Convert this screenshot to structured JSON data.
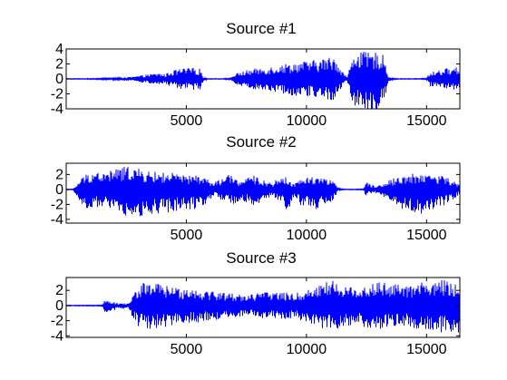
{
  "chart_data": [
    {
      "type": "line",
      "title": "Source #1",
      "xlim": [
        0,
        16384
      ],
      "ylim": [
        -4,
        4
      ],
      "xticks": [
        5000,
        10000,
        15000
      ],
      "xtick_labels": [
        "5000",
        "10000",
        "15000"
      ],
      "yticks": [
        4,
        2,
        0,
        -2,
        -4
      ],
      "ytick_labels": [
        "4",
        "2",
        "0",
        "-2",
        "-4"
      ],
      "series": [
        {
          "color": "#0000ff",
          "envelope": {
            "x": [
              0,
              800,
              1500,
              2200,
              2800,
              3200,
              3600,
              3900,
              4100,
              4300,
              4800,
              5200,
              5600,
              5700,
              5900,
              6500,
              6800,
              7000,
              7200,
              7700,
              8300,
              8900,
              9400,
              10000,
              10500,
              11000,
              11200,
              11300,
              11500,
              11700,
              11800,
              11900,
              12050,
              12200,
              12400,
              12700,
              13000,
              13150,
              13300,
              13400,
              13600,
              13800,
              14200,
              14700,
              15000,
              15150,
              15200,
              15600,
              16000,
              16384
            ],
            "upper": [
              0.05,
              0.05,
              0.1,
              0.15,
              0.3,
              0.5,
              0.7,
              0.8,
              0.6,
              1.0,
              1.4,
              1.5,
              1.4,
              0.3,
              0.05,
              0.05,
              0.1,
              0.6,
              0.9,
              1.3,
              1.6,
              1.9,
              2.2,
              2.4,
              2.6,
              3.0,
              3.1,
              2.4,
              1.0,
              0.3,
              1.5,
              2.8,
              3.9,
              3.9,
              3.6,
              3.5,
              3.6,
              3.4,
              2.2,
              0.4,
              0.1,
              0.05,
              0.05,
              0.05,
              0.1,
              1.0,
              0.9,
              1.3,
              1.5,
              1.6
            ],
            "lower": [
              -0.05,
              -0.05,
              -0.1,
              -0.15,
              -0.3,
              -0.5,
              -0.7,
              -0.8,
              -0.6,
              -1.0,
              -1.4,
              -1.5,
              -1.4,
              -0.3,
              -0.05,
              -0.05,
              -0.1,
              -0.6,
              -0.9,
              -1.3,
              -1.6,
              -1.9,
              -2.2,
              -2.4,
              -2.6,
              -2.9,
              -2.8,
              -2.2,
              -1.0,
              -0.3,
              -1.8,
              -3.0,
              -3.9,
              -4.3,
              -4.0,
              -4.3,
              -4.2,
              -3.8,
              -2.4,
              -0.4,
              -0.1,
              -0.05,
              -0.05,
              -0.05,
              -0.1,
              -1.0,
              -1.0,
              -1.2,
              -1.4,
              -1.5
            ]
          }
        }
      ]
    },
    {
      "type": "line",
      "title": "Source #2",
      "xlim": [
        0,
        16384
      ],
      "ylim": [
        -4.5,
        3.5
      ],
      "xticks": [
        5000,
        10000,
        15000
      ],
      "xtick_labels": [
        "5000",
        "10000",
        "15000"
      ],
      "yticks": [
        2,
        0,
        -2,
        -4
      ],
      "ytick_labels": [
        "2",
        "0",
        "-2",
        "-4"
      ],
      "series": [
        {
          "color": "#0000ff",
          "envelope": {
            "x": [
              0,
              300,
              500,
              700,
              1000,
              1300,
              1600,
              2000,
              2400,
              2700,
              2900,
              3100,
              3500,
              4000,
              4500,
              5000,
              5500,
              5900,
              6100,
              6400,
              6800,
              7200,
              7600,
              7900,
              8200,
              8600,
              9000,
              9300,
              9500,
              9700,
              10000,
              10400,
              10800,
              11100,
              11300,
              11500,
              12000,
              12400,
              12450,
              12600,
              13000,
              13400,
              13800,
              14200,
              14600,
              15000,
              15400,
              15700,
              16000,
              16384
            ],
            "upper": [
              0.05,
              0.05,
              1.0,
              1.8,
              2.4,
              2.5,
              2.2,
              2.8,
              3.0,
              3.3,
              3.0,
              2.6,
              2.4,
              2.3,
              2.2,
              1.8,
              2.0,
              1.4,
              0.8,
              1.4,
              2.0,
              1.2,
              1.6,
              1.9,
              1.2,
              1.0,
              1.8,
              1.4,
              0.6,
              1.6,
              1.6,
              1.9,
              1.6,
              1.2,
              0.3,
              0.05,
              0.05,
              0.1,
              1.4,
              0.8,
              0.5,
              1.2,
              1.7,
              2.0,
              2.2,
              2.3,
              2.0,
              1.8,
              1.4,
              0.6
            ],
            "lower": [
              -0.05,
              -0.05,
              -1.4,
              -2.4,
              -2.6,
              -2.4,
              -2.2,
              -2.8,
              -3.4,
              -4.4,
              -4.2,
              -3.6,
              -3.4,
              -3.2,
              -3.0,
              -2.8,
              -2.6,
              -2.0,
              -0.8,
              -1.4,
              -2.2,
              -1.6,
              -1.8,
              -2.6,
              -1.2,
              -1.0,
              -1.8,
              -3.4,
              -0.6,
              -2.2,
              -2.4,
              -2.6,
              -2.2,
              -1.6,
              -0.3,
              -0.05,
              -0.05,
              -0.1,
              -0.9,
              -0.6,
              -0.5,
              -1.8,
              -2.4,
              -2.8,
              -3.2,
              -3.4,
              -2.4,
              -2.2,
              -1.6,
              -0.6
            ]
          }
        }
      ]
    },
    {
      "type": "line",
      "title": "Source #3",
      "xlim": [
        0,
        16384
      ],
      "ylim": [
        -4.2,
        3.7
      ],
      "xticks": [
        5000,
        10000,
        15000
      ],
      "xtick_labels": [
        "5000",
        "10000",
        "15000"
      ],
      "yticks": [
        2,
        0,
        -2,
        -4
      ],
      "ytick_labels": [
        "2",
        "0",
        "-2",
        "-4"
      ],
      "series": [
        {
          "color": "#0000ff",
          "envelope": {
            "x": [
              0,
              1000,
              1500,
              1600,
              1800,
              2200,
              2600,
              2800,
              3000,
              3200,
              3600,
              4000,
              4500,
              5000,
              5500,
              6000,
              6500,
              7000,
              7500,
              8000,
              8500,
              9000,
              9500,
              10000,
              10300,
              10600,
              11000,
              11300,
              11600,
              12000,
              12500,
              13000,
              13500,
              14000,
              14500,
              15000,
              15300,
              15600,
              16000,
              16384
            ],
            "upper": [
              0.05,
              0.05,
              0.1,
              0.9,
              0.6,
              0.3,
              0.3,
              1.6,
              2.5,
              3.0,
              3.2,
              2.8,
              2.4,
              2.5,
              2.2,
              2.0,
              1.8,
              1.6,
              1.5,
              1.7,
              1.9,
              1.8,
              1.6,
              2.0,
              2.6,
              3.0,
              3.4,
              3.2,
              2.6,
              2.4,
              2.8,
              3.2,
              3.0,
              2.6,
              2.8,
              3.4,
              2.8,
              3.6,
              3.0,
              3.2
            ],
            "lower": [
              -0.05,
              -0.05,
              -0.1,
              -1.0,
              -0.8,
              -0.4,
              -0.4,
              -1.8,
              -2.8,
              -3.2,
              -3.4,
              -3.0,
              -2.6,
              -2.4,
              -2.2,
              -2.0,
              -1.8,
              -1.5,
              -1.4,
              -1.6,
              -1.8,
              -1.8,
              -1.7,
              -2.2,
              -2.8,
              -3.0,
              -3.3,
              -3.1,
              -2.8,
              -2.5,
              -2.9,
              -3.2,
              -3.0,
              -2.8,
              -3.0,
              -3.4,
              -3.2,
              -3.8,
              -3.6,
              -3.8
            ]
          }
        }
      ]
    }
  ]
}
